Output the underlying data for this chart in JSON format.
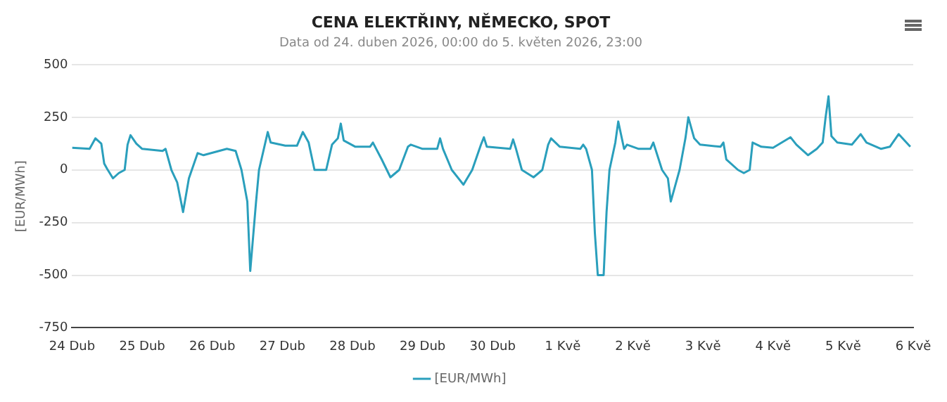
{
  "chart_data": {
    "type": "line",
    "title": "CENA ELEKTŘINY, NĚMECKO, SPOT",
    "subtitle": "Data od 24. duben 2026, 00:00 do 5. květen 2026, 23:00",
    "ylabel": "[EUR/MWh]",
    "xlim": [
      "2026-04-24T00:00",
      "2026-05-06T00:00"
    ],
    "xticks": [
      {
        "value": "2026-04-24T00:00",
        "label": "24 Dub"
      },
      {
        "value": "2026-04-25T00:00",
        "label": "25 Dub"
      },
      {
        "value": "2026-04-26T00:00",
        "label": "26 Dub"
      },
      {
        "value": "2026-04-27T00:00",
        "label": "27 Dub"
      },
      {
        "value": "2026-04-28T00:00",
        "label": "28 Dub"
      },
      {
        "value": "2026-04-29T00:00",
        "label": "29 Dub"
      },
      {
        "value": "2026-04-30T00:00",
        "label": "30 Dub"
      },
      {
        "value": "2026-05-01T00:00",
        "label": "1 Kvě"
      },
      {
        "value": "2026-05-02T00:00",
        "label": "2 Kvě"
      },
      {
        "value": "2026-05-03T00:00",
        "label": "3 Kvě"
      },
      {
        "value": "2026-05-04T00:00",
        "label": "4 Kvě"
      },
      {
        "value": "2026-05-05T00:00",
        "label": "5 Kvě"
      },
      {
        "value": "2026-05-06T00:00",
        "label": "6 Kvě"
      }
    ],
    "ylim": [
      -750,
      500
    ],
    "yticks": [
      -750,
      -500,
      -250,
      0,
      250,
      500
    ],
    "grid": "y",
    "legend": "bottom",
    "marker": "none",
    "line_style": "solid",
    "x": [
      "2026-04-24T00:00",
      "2026-04-24T06:00",
      "2026-04-24T08:00",
      "2026-04-24T10:00",
      "2026-04-24T11:00",
      "2026-04-24T12:00",
      "2026-04-24T14:00",
      "2026-04-24T16:00",
      "2026-04-24T18:00",
      "2026-04-24T19:00",
      "2026-04-24T20:00",
      "2026-04-24T22:00",
      "2026-04-25T00:00",
      "2026-04-25T07:00",
      "2026-04-25T08:00",
      "2026-04-25T10:00",
      "2026-04-25T12:00",
      "2026-04-25T14:00",
      "2026-04-25T16:00",
      "2026-04-25T17:00",
      "2026-04-25T19:00",
      "2026-04-25T21:00",
      "2026-04-26T05:00",
      "2026-04-26T08:00",
      "2026-04-26T10:00",
      "2026-04-26T12:00",
      "2026-04-26T13:00",
      "2026-04-26T15:00",
      "2026-04-26T16:00",
      "2026-04-26T19:00",
      "2026-04-26T20:00",
      "2026-04-27T01:00",
      "2026-04-27T05:00",
      "2026-04-27T07:00",
      "2026-04-27T09:00",
      "2026-04-27T11:00",
      "2026-04-27T15:00",
      "2026-04-27T17:00",
      "2026-04-27T19:00",
      "2026-04-27T20:00",
      "2026-04-27T21:00",
      "2026-04-28T01:00",
      "2026-04-28T06:00",
      "2026-04-28T07:00",
      "2026-04-28T10:00",
      "2026-04-28T13:00",
      "2026-04-28T16:00",
      "2026-04-28T19:00",
      "2026-04-28T20:00",
      "2026-04-29T00:00",
      "2026-04-29T05:00",
      "2026-04-29T06:00",
      "2026-04-29T07:00",
      "2026-04-29T10:00",
      "2026-04-29T14:00",
      "2026-04-29T17:00",
      "2026-04-29T20:00",
      "2026-04-29T21:00",
      "2026-04-29T22:00",
      "2026-04-30T06:00",
      "2026-04-30T07:00",
      "2026-04-30T08:00",
      "2026-04-30T10:00",
      "2026-04-30T14:00",
      "2026-04-30T17:00",
      "2026-04-30T19:00",
      "2026-04-30T20:00",
      "2026-04-30T23:00",
      "2026-05-01T06:00",
      "2026-05-01T07:00",
      "2026-05-01T08:00",
      "2026-05-01T10:00",
      "2026-05-01T11:00",
      "2026-05-01T12:00",
      "2026-05-01T14:00",
      "2026-05-01T15:00",
      "2026-05-01T16:00",
      "2026-05-01T18:00",
      "2026-05-01T19:00",
      "2026-05-01T21:00",
      "2026-05-01T22:00",
      "2026-05-02T02:00",
      "2026-05-02T06:00",
      "2026-05-02T07:00",
      "2026-05-02T10:00",
      "2026-05-02T12:00",
      "2026-05-02T13:00",
      "2026-05-02T16:00",
      "2026-05-02T18:00",
      "2026-05-02T19:00",
      "2026-05-02T21:00",
      "2026-05-02T23:00",
      "2026-05-03T06:00",
      "2026-05-03T07:00",
      "2026-05-03T08:00",
      "2026-05-03T12:00",
      "2026-05-03T14:00",
      "2026-05-03T16:00",
      "2026-05-03T17:00",
      "2026-05-03T20:00",
      "2026-05-04T00:00",
      "2026-05-04T06:00",
      "2026-05-04T08:00",
      "2026-05-04T12:00",
      "2026-05-04T15:00",
      "2026-05-04T17:00",
      "2026-05-04T18:00",
      "2026-05-04T19:00",
      "2026-05-04T20:00",
      "2026-05-04T22:00",
      "2026-05-05T03:00",
      "2026-05-05T06:00",
      "2026-05-05T08:00",
      "2026-05-05T13:00",
      "2026-05-05T16:00",
      "2026-05-05T19:00",
      "2026-05-05T21:00",
      "2026-05-05T23:00"
    ],
    "series": [
      {
        "name": "[EUR/MWh]",
        "color": "#2a9fbc",
        "values": [
          105,
          100,
          150,
          125,
          30,
          5,
          -40,
          -15,
          0,
          120,
          165,
          125,
          100,
          90,
          100,
          0,
          -60,
          -200,
          -40,
          0,
          80,
          70,
          100,
          90,
          0,
          -150,
          -480,
          -150,
          0,
          180,
          130,
          115,
          115,
          180,
          130,
          0,
          0,
          120,
          150,
          220,
          140,
          110,
          110,
          130,
          50,
          -35,
          0,
          110,
          120,
          100,
          100,
          150,
          100,
          0,
          -70,
          0,
          120,
          155,
          110,
          100,
          145,
          100,
          0,
          -35,
          0,
          120,
          150,
          110,
          100,
          120,
          100,
          0,
          -300,
          -500,
          -500,
          -200,
          0,
          130,
          230,
          100,
          120,
          100,
          100,
          130,
          0,
          -40,
          -150,
          0,
          150,
          250,
          150,
          120,
          110,
          130,
          50,
          0,
          -15,
          0,
          130,
          110,
          105,
          155,
          120,
          70,
          100,
          130,
          250,
          350,
          160,
          130,
          120,
          170,
          130,
          100,
          110,
          170,
          140,
          110
        ]
      }
    ]
  }
}
